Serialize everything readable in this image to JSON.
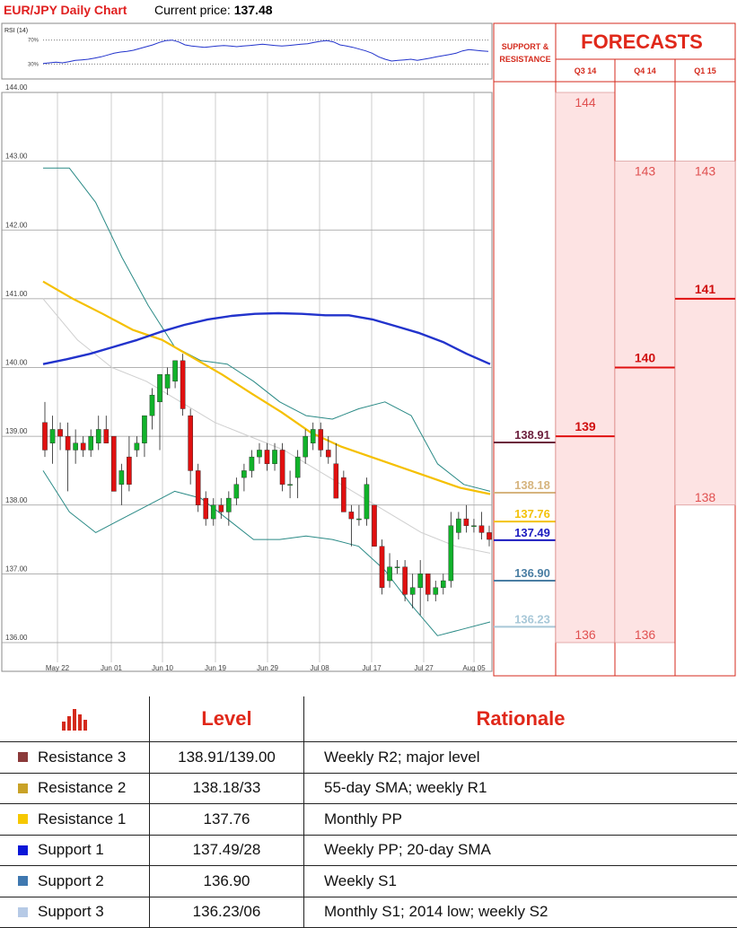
{
  "header": {
    "title": "EUR/JPY Daily Chart",
    "price_label": "Current price:",
    "price_value": "137.48"
  },
  "rsi": {
    "label": "RSI (14)",
    "upper_label": "70%",
    "lower_label": "30%",
    "upper": 70,
    "lower": 30,
    "values": [
      31,
      32,
      33,
      32,
      34,
      36,
      37,
      38,
      40,
      42,
      45,
      48,
      50,
      51,
      53,
      56,
      59,
      62,
      66,
      69,
      70,
      67,
      62,
      60,
      59,
      58,
      59,
      60,
      61,
      60,
      59,
      60,
      61,
      62,
      63,
      62,
      61,
      60,
      61,
      62,
      63,
      64,
      66,
      68,
      69,
      67,
      62,
      60,
      58,
      55,
      52,
      48,
      42,
      38,
      35,
      36,
      37,
      38,
      36,
      38,
      40,
      42,
      44,
      46,
      48,
      52,
      54,
      53,
      52,
      51
    ]
  },
  "chart_data": {
    "type": "candlestick",
    "ylim": [
      135.85,
      144.0
    ],
    "y_ticks": [
      "144.00",
      "143.00",
      "142.00",
      "141.00",
      "140.00",
      "139.00",
      "138.00",
      "137.00",
      "136.00"
    ],
    "x_ticks": [
      "May 22",
      "Jun 01",
      "Jun 10",
      "Jun 19",
      "Jun 29",
      "Jul 08",
      "Jul 17",
      "Jul 27",
      "Aug 05"
    ],
    "grid": true,
    "candles": [
      {
        "o": 139.2,
        "h": 139.5,
        "l": 138.7,
        "c": 138.8
      },
      {
        "o": 138.9,
        "h": 139.3,
        "l": 138.6,
        "c": 139.1
      },
      {
        "o": 139.1,
        "h": 139.2,
        "l": 138.8,
        "c": 139.0
      },
      {
        "o": 139.0,
        "h": 139.2,
        "l": 138.2,
        "c": 138.8
      },
      {
        "o": 138.8,
        "h": 139.1,
        "l": 138.6,
        "c": 138.9
      },
      {
        "o": 138.9,
        "h": 139.0,
        "l": 138.7,
        "c": 138.8
      },
      {
        "o": 138.8,
        "h": 139.1,
        "l": 138.7,
        "c": 139.0
      },
      {
        "o": 138.9,
        "h": 139.3,
        "l": 138.8,
        "c": 139.1
      },
      {
        "o": 139.1,
        "h": 139.3,
        "l": 138.9,
        "c": 138.9
      },
      {
        "o": 139.0,
        "h": 139.0,
        "l": 138.2,
        "c": 138.2
      },
      {
        "o": 138.3,
        "h": 138.6,
        "l": 138.0,
        "c": 138.5
      },
      {
        "o": 138.7,
        "h": 139.0,
        "l": 138.2,
        "c": 138.3
      },
      {
        "o": 138.8,
        "h": 139.0,
        "l": 138.7,
        "c": 138.9
      },
      {
        "o": 138.9,
        "h": 139.3,
        "l": 138.7,
        "c": 139.3
      },
      {
        "o": 139.3,
        "h": 139.7,
        "l": 139.1,
        "c": 139.6
      },
      {
        "o": 139.5,
        "h": 139.9,
        "l": 138.8,
        "c": 139.9
      },
      {
        "o": 139.7,
        "h": 140.0,
        "l": 139.6,
        "c": 139.9
      },
      {
        "o": 139.8,
        "h": 140.1,
        "l": 139.7,
        "c": 140.1
      },
      {
        "o": 140.1,
        "h": 140.2,
        "l": 139.3,
        "c": 139.4
      },
      {
        "o": 139.3,
        "h": 139.4,
        "l": 138.3,
        "c": 138.5
      },
      {
        "o": 138.5,
        "h": 138.6,
        "l": 137.9,
        "c": 138.0
      },
      {
        "o": 138.1,
        "h": 138.2,
        "l": 137.7,
        "c": 137.8
      },
      {
        "o": 137.8,
        "h": 138.1,
        "l": 137.7,
        "c": 138.0
      },
      {
        "o": 138.0,
        "h": 138.1,
        "l": 137.8,
        "c": 137.9
      },
      {
        "o": 137.9,
        "h": 138.2,
        "l": 137.7,
        "c": 138.1
      },
      {
        "o": 138.1,
        "h": 138.4,
        "l": 138.0,
        "c": 138.3
      },
      {
        "o": 138.4,
        "h": 138.6,
        "l": 138.2,
        "c": 138.5
      },
      {
        "o": 138.5,
        "h": 138.8,
        "l": 138.4,
        "c": 138.7
      },
      {
        "o": 138.7,
        "h": 138.9,
        "l": 138.6,
        "c": 138.8
      },
      {
        "o": 138.8,
        "h": 138.9,
        "l": 138.5,
        "c": 138.6
      },
      {
        "o": 138.6,
        "h": 138.9,
        "l": 138.5,
        "c": 138.8
      },
      {
        "o": 138.8,
        "h": 138.9,
        "l": 138.2,
        "c": 138.3
      },
      {
        "o": 138.3,
        "h": 138.5,
        "l": 138.1,
        "c": 138.3
      },
      {
        "o": 138.4,
        "h": 138.8,
        "l": 138.1,
        "c": 138.7
      },
      {
        "o": 138.7,
        "h": 139.1,
        "l": 138.6,
        "c": 139.0
      },
      {
        "o": 138.9,
        "h": 139.2,
        "l": 138.8,
        "c": 139.1
      },
      {
        "o": 139.1,
        "h": 139.2,
        "l": 138.7,
        "c": 138.8
      },
      {
        "o": 138.8,
        "h": 139.0,
        "l": 138.6,
        "c": 138.7
      },
      {
        "o": 138.6,
        "h": 138.9,
        "l": 138.1,
        "c": 138.1
      },
      {
        "o": 138.4,
        "h": 138.5,
        "l": 137.9,
        "c": 137.9
      },
      {
        "o": 137.9,
        "h": 138.0,
        "l": 137.4,
        "c": 137.8
      },
      {
        "o": 137.8,
        "h": 138.0,
        "l": 137.7,
        "c": 137.8
      },
      {
        "o": 137.8,
        "h": 138.4,
        "l": 137.7,
        "c": 138.3
      },
      {
        "o": 138.0,
        "h": 138.0,
        "l": 137.4,
        "c": 137.4
      },
      {
        "o": 137.4,
        "h": 137.5,
        "l": 136.7,
        "c": 136.8
      },
      {
        "o": 136.9,
        "h": 137.3,
        "l": 136.8,
        "c": 137.1
      },
      {
        "o": 137.1,
        "h": 137.2,
        "l": 137.0,
        "c": 137.1
      },
      {
        "o": 137.1,
        "h": 137.2,
        "l": 136.6,
        "c": 136.7
      },
      {
        "o": 136.7,
        "h": 137.0,
        "l": 136.5,
        "c": 136.8
      },
      {
        "o": 136.8,
        "h": 137.2,
        "l": 136.4,
        "c": 137.0
      },
      {
        "o": 137.0,
        "h": 137.0,
        "l": 136.6,
        "c": 136.7
      },
      {
        "o": 136.7,
        "h": 136.9,
        "l": 136.6,
        "c": 136.8
      },
      {
        "o": 136.8,
        "h": 137.0,
        "l": 136.7,
        "c": 136.9
      },
      {
        "o": 136.9,
        "h": 137.9,
        "l": 136.8,
        "c": 137.7
      },
      {
        "o": 137.6,
        "h": 137.9,
        "l": 137.5,
        "c": 137.8
      },
      {
        "o": 137.8,
        "h": 138.0,
        "l": 137.6,
        "c": 137.7
      },
      {
        "o": 137.7,
        "h": 137.8,
        "l": 137.6,
        "c": 137.7
      },
      {
        "o": 137.7,
        "h": 137.9,
        "l": 137.5,
        "c": 137.6
      },
      {
        "o": 137.6,
        "h": 137.7,
        "l": 137.4,
        "c": 137.5
      }
    ],
    "sma_blue": [
      140.05,
      140.12,
      140.2,
      140.3,
      140.4,
      140.52,
      140.62,
      140.7,
      140.75,
      140.78,
      140.79,
      140.78,
      140.76,
      140.76,
      140.7,
      140.6,
      140.5,
      140.37,
      140.2,
      140.05
    ],
    "sma_yellow": [
      141.25,
      141.0,
      140.78,
      140.55,
      140.4,
      140.15,
      139.9,
      139.62,
      139.35,
      139.05,
      138.85,
      138.7,
      138.55,
      138.4,
      138.25,
      138.16
    ],
    "sma_grey": [
      141.0,
      140.4,
      140.0,
      139.8,
      139.5,
      139.2,
      139.0,
      138.8,
      138.5,
      138.2,
      137.9,
      137.6,
      137.4,
      137.3
    ],
    "bollinger_upper": [
      142.9,
      142.9,
      142.4,
      141.6,
      140.9,
      140.3,
      140.1,
      140.05,
      139.8,
      139.5,
      139.3,
      139.25,
      139.4,
      139.5,
      139.3,
      138.6,
      138.3,
      138.2
    ],
    "bollinger_lower": [
      138.5,
      137.9,
      137.6,
      137.8,
      138.0,
      138.2,
      138.1,
      137.8,
      137.5,
      137.5,
      137.55,
      137.5,
      137.4,
      137.05,
      136.55,
      136.1,
      136.2,
      136.3
    ],
    "levels": [
      {
        "label": "138.91",
        "value": 138.91,
        "color": "#6b1e3c"
      },
      {
        "label": "138.18",
        "value": 138.18,
        "color": "#d6b47e"
      },
      {
        "label": "137.76",
        "value": 137.76,
        "color": "#f3c20a"
      },
      {
        "label": "137.49",
        "value": 137.49,
        "color": "#1a1abf"
      },
      {
        "label": "136.90",
        "value": 136.9,
        "color": "#4a7ea3"
      },
      {
        "label": "136.23",
        "value": 136.23,
        "color": "#a8c8d8"
      }
    ]
  },
  "side": {
    "sr_title_1": "SUPPORT &",
    "sr_title_2": "RESISTANCE",
    "forecasts_title": "FORECASTS",
    "quarters": [
      "Q3 14",
      "Q4 14",
      "Q1 15"
    ],
    "bands": [
      {
        "high": 144,
        "low": 136,
        "high_label": "144",
        "low_label": "136",
        "mid": 139,
        "mid_label": "139"
      },
      {
        "high": 143,
        "low": 136,
        "high_label": "143",
        "low_label": "136",
        "mid": 140,
        "mid_label": "140"
      },
      {
        "high": 143,
        "low": 138,
        "high_label": "143",
        "low_label": "138",
        "mid": 141,
        "mid_label": "141"
      }
    ]
  },
  "table": {
    "headers": {
      "level": "Level",
      "rationale": "Rationale"
    },
    "rows": [
      {
        "name": "Resistance 3",
        "level": "138.91/139.00",
        "rationale": "Weekly R2; major level",
        "color": "#8b3a3a"
      },
      {
        "name": "Resistance 2",
        "level": "138.18/33",
        "rationale": "55-day SMA; weekly R1",
        "color": "#c9a227"
      },
      {
        "name": "Resistance 1",
        "level": "137.76",
        "rationale": "Monthly PP",
        "color": "#f6c800"
      },
      {
        "name": "Support 1",
        "level": "137.49/28",
        "rationale": "Weekly PP; 20-day SMA",
        "color": "#0a16d8"
      },
      {
        "name": "Support 2",
        "level": "136.90",
        "rationale": "Weekly S1",
        "color": "#3f78b0"
      },
      {
        "name": "Support 3",
        "level": "136.23/06",
        "rationale": "Monthly S1; 2014 low; weekly S2",
        "color": "#b6cae6"
      }
    ]
  }
}
